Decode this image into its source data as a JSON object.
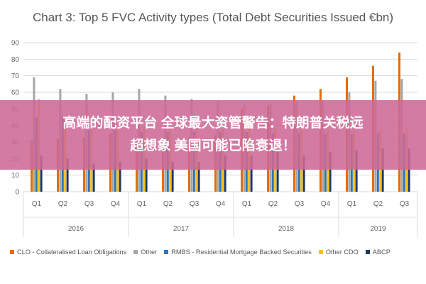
{
  "chart_data": {
    "type": "bar",
    "title": "Chart 3: Top 5 FVC Activity types (Total Debt Securities Issued €bn)",
    "ylim": [
      0,
      90
    ],
    "yticks": [
      0,
      10,
      20,
      30,
      40,
      50,
      60,
      70,
      80,
      90
    ],
    "grid": true,
    "legend_position": "bottom",
    "categories": [
      "Q1",
      "Q2",
      "Q3",
      "Q4",
      "Q1",
      "Q2",
      "Q3",
      "Q4",
      "Q1",
      "Q2",
      "Q3",
      "Q4",
      "Q1",
      "Q2",
      "Q3"
    ],
    "year_groups": [
      {
        "label": "2016",
        "count": 4
      },
      {
        "label": "2017",
        "count": 4
      },
      {
        "label": "2018",
        "count": 4
      },
      {
        "label": "2019",
        "count": 3
      }
    ],
    "series": [
      {
        "name": "CLO - Collateralised Loan Obligations",
        "color": "#e46c0a",
        "values": [
          31,
          32,
          33,
          35,
          30,
          32,
          33,
          34,
          50,
          52,
          58,
          62,
          69,
          76,
          84
        ]
      },
      {
        "name": "Other",
        "color": "#a6a6a6",
        "values": [
          69,
          62,
          59,
          60,
          62,
          58,
          56,
          55,
          53,
          53,
          54,
          55,
          60,
          67,
          68
        ]
      },
      {
        "name": "RMBS - Residential Mortgage Backed Securities",
        "color": "#2e75b6",
        "values": [
          45,
          45,
          37,
          37,
          36,
          36,
          36,
          36,
          36,
          35,
          35,
          35,
          35,
          35,
          35
        ]
      },
      {
        "name": "Other CDO",
        "color": "#ffc000",
        "values": [
          56,
          39,
          40,
          39,
          39,
          38,
          38,
          38,
          38,
          38,
          38,
          37,
          37,
          37,
          38
        ]
      },
      {
        "name": "ABCP",
        "color": "#203864",
        "values": [
          22,
          20,
          17,
          18,
          20,
          18,
          18,
          22,
          22,
          24,
          22,
          24,
          25,
          26,
          26
        ]
      }
    ]
  },
  "overlay": {
    "line1": "高端的配资平台 全球最大资管警告：特朗普关税远",
    "line2": "超想象 美国可能已陷衰退！"
  }
}
